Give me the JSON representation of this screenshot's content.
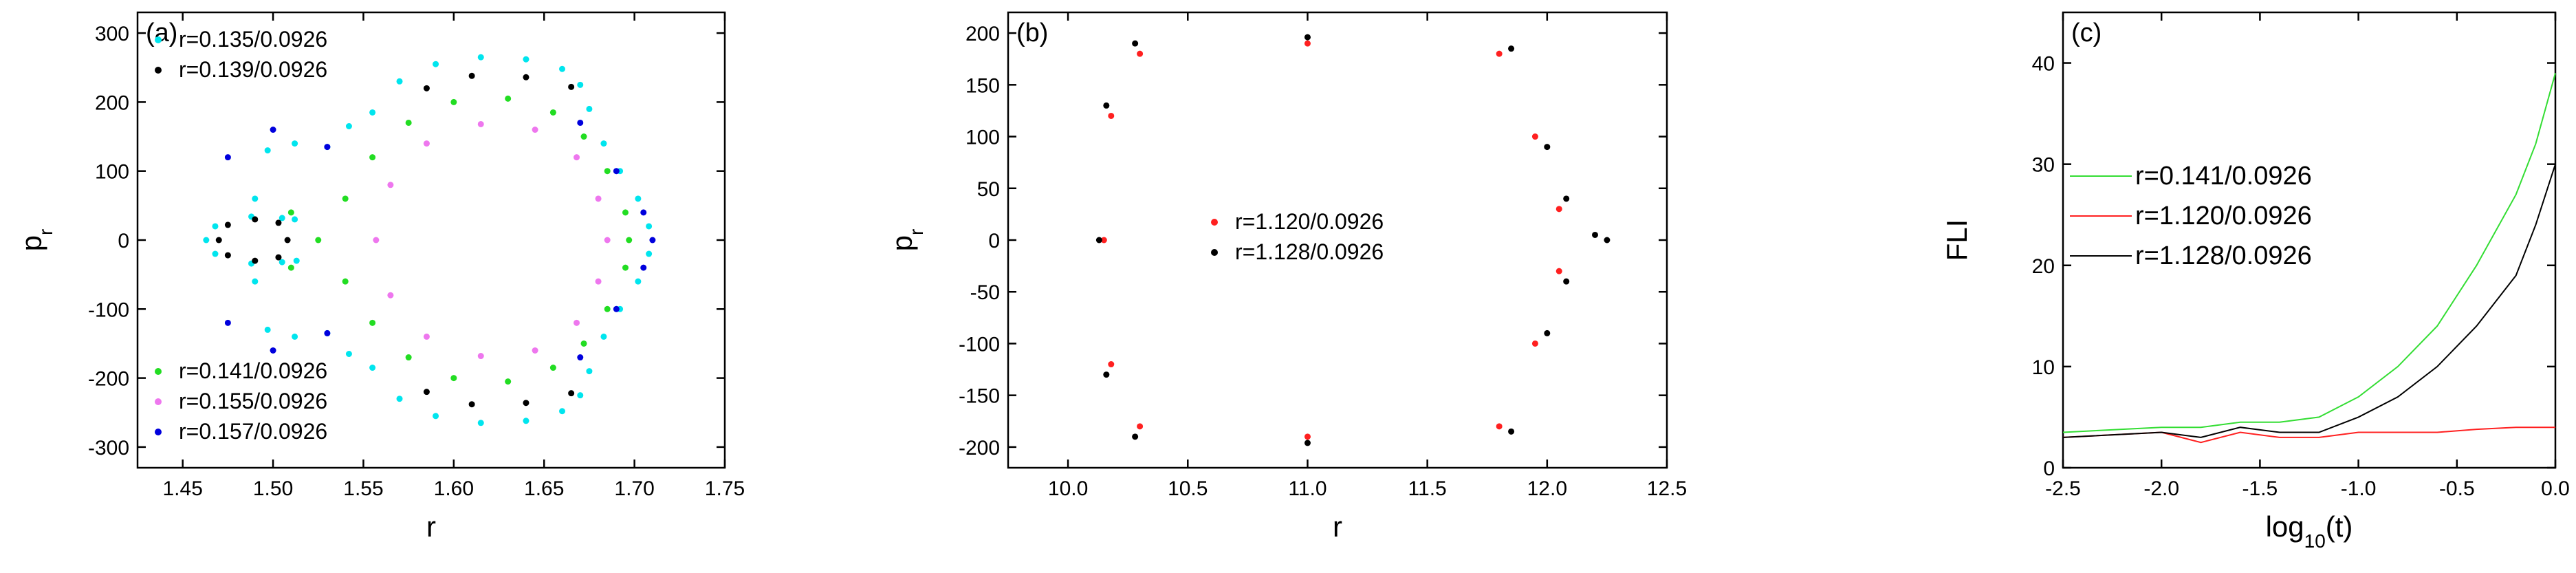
{
  "chart_data": [
    {
      "panel": "(a)",
      "type": "scatter",
      "title": "",
      "xlabel": "r",
      "ylabel": "p",
      "ylabel_sub": "r",
      "xlim": [
        1.425,
        1.75
      ],
      "ylim": [
        -330,
        330
      ],
      "xticks": [
        1.45,
        1.5,
        1.55,
        1.6,
        1.65,
        1.7,
        1.75
      ],
      "xtick_labels": [
        "1.45",
        "1.50",
        "1.55",
        "1.60",
        "1.65",
        "1.70",
        "1.75"
      ],
      "yticks": [
        -300,
        -200,
        -100,
        0,
        100,
        200,
        300
      ],
      "ytick_labels": [
        "-300",
        "-200",
        "-100",
        "0",
        "100",
        "200",
        "300"
      ],
      "series": [
        {
          "name": "r=0.135/0.0926",
          "color": "#00e5ee",
          "kind": "outer",
          "points": [
            [
              1.463,
              0
            ],
            [
              1.468,
              20
            ],
            [
              1.488,
              34
            ],
            [
              1.505,
              32
            ],
            [
              1.512,
              30
            ],
            [
              1.513,
              -30
            ],
            [
              1.505,
              -32
            ],
            [
              1.488,
              -34
            ],
            [
              1.468,
              -20
            ],
            [
              1.49,
              -60
            ],
            [
              1.497,
              -130
            ],
            [
              1.512,
              -140
            ],
            [
              1.53,
              -135
            ],
            [
              1.542,
              -165
            ],
            [
              1.555,
              -185
            ],
            [
              1.57,
              -230
            ],
            [
              1.59,
              -255
            ],
            [
              1.615,
              -265
            ],
            [
              1.64,
              -262
            ],
            [
              1.66,
              -248
            ],
            [
              1.67,
              -225
            ],
            [
              1.675,
              -190
            ],
            [
              1.683,
              -140
            ],
            [
              1.692,
              -100
            ],
            [
              1.702,
              -60
            ],
            [
              1.708,
              -20
            ],
            [
              1.708,
              20
            ],
            [
              1.702,
              60
            ],
            [
              1.692,
              100
            ],
            [
              1.683,
              140
            ],
            [
              1.675,
              190
            ],
            [
              1.67,
              225
            ],
            [
              1.66,
              248
            ],
            [
              1.64,
              262
            ],
            [
              1.615,
              265
            ],
            [
              1.59,
              255
            ],
            [
              1.57,
              230
            ],
            [
              1.555,
              185
            ],
            [
              1.542,
              165
            ],
            [
              1.53,
              135
            ],
            [
              1.512,
              140
            ],
            [
              1.497,
              130
            ],
            [
              1.49,
              60
            ]
          ]
        },
        {
          "name": "r=0.139/0.0926",
          "color": "#000000",
          "kind": "islands",
          "points": [
            [
              1.47,
              0
            ],
            [
              1.475,
              22
            ],
            [
              1.49,
              30
            ],
            [
              1.503,
              25
            ],
            [
              1.508,
              0
            ],
            [
              1.503,
              -25
            ],
            [
              1.49,
              -30
            ],
            [
              1.475,
              -22
            ],
            [
              1.585,
              220
            ],
            [
              1.61,
              238
            ],
            [
              1.64,
              236
            ],
            [
              1.665,
              222
            ],
            [
              1.585,
              -220
            ],
            [
              1.61,
              -238
            ],
            [
              1.64,
              -236
            ],
            [
              1.665,
              -222
            ]
          ]
        },
        {
          "name": "r=0.141/0.0926",
          "color": "#22dd22",
          "kind": "separatrix",
          "points": [
            [
              1.525,
              0
            ],
            [
              1.54,
              60
            ],
            [
              1.555,
              120
            ],
            [
              1.575,
              170
            ],
            [
              1.6,
              200
            ],
            [
              1.63,
              205
            ],
            [
              1.655,
              185
            ],
            [
              1.672,
              150
            ],
            [
              1.685,
              100
            ],
            [
              1.695,
              40
            ],
            [
              1.697,
              0
            ],
            [
              1.695,
              -40
            ],
            [
              1.685,
              -100
            ],
            [
              1.672,
              -150
            ],
            [
              1.655,
              -185
            ],
            [
              1.63,
              -205
            ],
            [
              1.6,
              -200
            ],
            [
              1.575,
              -170
            ],
            [
              1.555,
              -120
            ],
            [
              1.54,
              -60
            ],
            [
              1.51,
              40
            ],
            [
              1.51,
              -40
            ]
          ]
        },
        {
          "name": "r=0.155/0.0926",
          "color": "#ee77ee",
          "kind": "inner",
          "points": [
            [
              1.557,
              0
            ],
            [
              1.565,
              80
            ],
            [
              1.585,
              140
            ],
            [
              1.615,
              168
            ],
            [
              1.645,
              160
            ],
            [
              1.668,
              120
            ],
            [
              1.68,
              60
            ],
            [
              1.685,
              0
            ],
            [
              1.68,
              -60
            ],
            [
              1.668,
              -120
            ],
            [
              1.645,
              -160
            ],
            [
              1.615,
              -168
            ],
            [
              1.585,
              -140
            ],
            [
              1.565,
              -80
            ]
          ]
        },
        {
          "name": "r=0.157/0.0926",
          "color": "#0000dd",
          "kind": "chaotic",
          "points": [
            [
              1.475,
              120
            ],
            [
              1.5,
              160
            ],
            [
              1.53,
              135
            ],
            [
              1.475,
              -120
            ],
            [
              1.5,
              -160
            ],
            [
              1.53,
              -135
            ],
            [
              1.69,
              100
            ],
            [
              1.705,
              40
            ],
            [
              1.71,
              0
            ],
            [
              1.705,
              -40
            ],
            [
              1.69,
              -100
            ],
            [
              1.67,
              -170
            ],
            [
              1.67,
              170
            ]
          ]
        }
      ],
      "legend_top": [
        "r=0.135/0.0926",
        "r=0.139/0.0926"
      ],
      "legend_bottom": [
        "r=0.141/0.0926",
        "r=0.155/0.0926",
        "r=0.157/0.0926"
      ]
    },
    {
      "panel": "(b)",
      "type": "scatter",
      "title": "",
      "xlabel": "r",
      "ylabel": "p",
      "ylabel_sub": "r",
      "xlim": [
        9.75,
        12.5
      ],
      "ylim": [
        -220,
        220
      ],
      "xticks": [
        10.0,
        10.5,
        11.0,
        11.5,
        12.0,
        12.5
      ],
      "xtick_labels": [
        "10.0",
        "10.5",
        "11.0",
        "11.5",
        "12.0",
        "12.5"
      ],
      "yticks": [
        -200,
        -150,
        -100,
        -50,
        0,
        50,
        100,
        150,
        200
      ],
      "ytick_labels": [
        "-200",
        "-150",
        "-100",
        "-50",
        "0",
        "50",
        "100",
        "150",
        "200"
      ],
      "series": [
        {
          "name": "r=1.120/0.0926",
          "color": "#ff2020",
          "points": [
            [
              10.15,
              0
            ],
            [
              10.18,
              120
            ],
            [
              10.3,
              180
            ],
            [
              11.0,
              190
            ],
            [
              11.8,
              180
            ],
            [
              11.95,
              100
            ],
            [
              12.05,
              30
            ],
            [
              12.05,
              -30
            ],
            [
              11.95,
              -100
            ],
            [
              11.8,
              -180
            ],
            [
              11.0,
              -190
            ],
            [
              10.3,
              -180
            ],
            [
              10.18,
              -120
            ]
          ]
        },
        {
          "name": "r=1.128/0.0926",
          "color": "#000000",
          "points": [
            [
              10.13,
              0
            ],
            [
              10.16,
              130
            ],
            [
              10.28,
              190
            ],
            [
              11.0,
              196
            ],
            [
              11.85,
              185
            ],
            [
              12.0,
              90
            ],
            [
              12.08,
              40
            ],
            [
              12.2,
              5
            ],
            [
              12.25,
              0
            ],
            [
              12.08,
              -40
            ],
            [
              12.0,
              -90
            ],
            [
              11.85,
              -185
            ],
            [
              11.0,
              -196
            ],
            [
              10.28,
              -190
            ],
            [
              10.16,
              -130
            ]
          ]
        }
      ],
      "legend": [
        "r=1.120/0.0926",
        "r=1.128/0.0926"
      ]
    },
    {
      "panel": "(c)",
      "type": "line",
      "title": "",
      "xlabel": "log",
      "xlabel_sub": "10",
      "xlabel_tail": "(t)",
      "ylabel": "FLI",
      "xlim": [
        -2.5,
        0.0
      ],
      "ylim": [
        0,
        45
      ],
      "xticks": [
        -2.5,
        -2.0,
        -1.5,
        -1.0,
        -0.5,
        0.0
      ],
      "xtick_labels": [
        "-2.5",
        "-2.0",
        "-1.5",
        "-1.0",
        "-0.5",
        "0.0"
      ],
      "yticks": [
        0,
        10,
        20,
        30,
        40
      ],
      "ytick_labels": [
        "0",
        "10",
        "20",
        "30",
        "40"
      ],
      "series": [
        {
          "name": "r=0.141/0.0926",
          "color": "#33dd33",
          "x": [
            -2.5,
            -2.0,
            -1.8,
            -1.6,
            -1.4,
            -1.2,
            -1.0,
            -0.8,
            -0.6,
            -0.4,
            -0.2,
            -0.1,
            0.0
          ],
          "y": [
            3.5,
            4.0,
            4.0,
            4.5,
            4.5,
            5.0,
            7.0,
            10.0,
            14.0,
            20.0,
            27.0,
            32.0,
            39.0
          ]
        },
        {
          "name": "r=1.120/0.0926",
          "color": "#ff2020",
          "x": [
            -2.5,
            -2.0,
            -1.8,
            -1.6,
            -1.4,
            -1.2,
            -1.0,
            -0.8,
            -0.6,
            -0.4,
            -0.2,
            0.0
          ],
          "y": [
            3.0,
            3.5,
            2.5,
            3.5,
            3.0,
            3.0,
            3.5,
            3.5,
            3.5,
            3.8,
            4.0,
            4.0
          ]
        },
        {
          "name": "r=1.128/0.0926",
          "color": "#000000",
          "x": [
            -2.5,
            -2.0,
            -1.8,
            -1.6,
            -1.4,
            -1.2,
            -1.0,
            -0.8,
            -0.6,
            -0.4,
            -0.2,
            -0.1,
            0.0
          ],
          "y": [
            3.0,
            3.5,
            3.0,
            4.0,
            3.5,
            3.5,
            5.0,
            7.0,
            10.0,
            14.0,
            19.0,
            24.0,
            30.0
          ]
        }
      ],
      "legend": [
        "r=0.141/0.0926",
        "r=1.120/0.0926",
        "r=1.128/0.0926"
      ]
    }
  ]
}
